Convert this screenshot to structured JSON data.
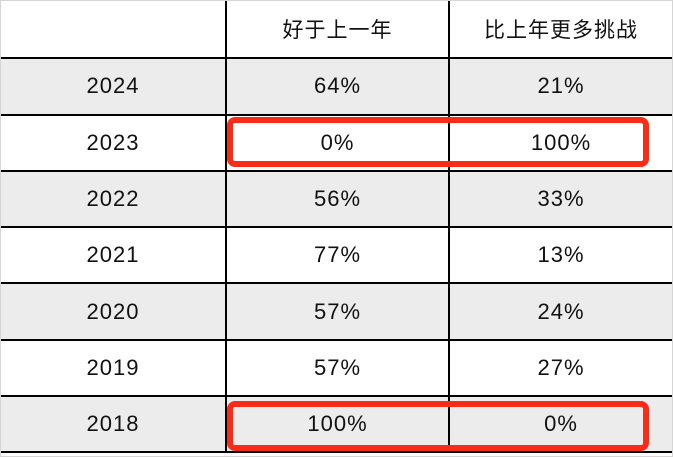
{
  "table": {
    "columns": [
      "",
      "好于上一年",
      "比上年更多挑战"
    ],
    "rows": [
      {
        "year": "2024",
        "better": "64%",
        "challenge": "21%",
        "highlight": false
      },
      {
        "year": "2023",
        "better": "0%",
        "challenge": "100%",
        "highlight": true
      },
      {
        "year": "2022",
        "better": "56%",
        "challenge": "33%",
        "highlight": false
      },
      {
        "year": "2021",
        "better": "77%",
        "challenge": "13%",
        "highlight": false
      },
      {
        "year": "2020",
        "better": "57%",
        "challenge": "24%",
        "highlight": false
      },
      {
        "year": "2019",
        "better": "57%",
        "challenge": "27%",
        "highlight": false
      },
      {
        "year": "2018",
        "better": "100%",
        "challenge": "0%",
        "highlight": true
      }
    ]
  },
  "colors": {
    "highlight_red": "#fa2c18",
    "row_alt_gray": "#ececec",
    "grid_black": "#000000",
    "frame_gray": "#d5d5d5"
  },
  "chart_data": {
    "type": "table",
    "columns": [
      "",
      "好于上一年",
      "比上年更多挑战"
    ],
    "categories": [
      "2024",
      "2023",
      "2022",
      "2021",
      "2020",
      "2019",
      "2018"
    ],
    "series": [
      {
        "name": "好于上一年",
        "values": [
          64,
          0,
          56,
          77,
          57,
          57,
          100
        ]
      },
      {
        "name": "比上年更多挑战",
        "values": [
          21,
          100,
          33,
          13,
          24,
          27,
          0
        ]
      }
    ],
    "values_unit": "%",
    "highlighted_rows": [
      "2023",
      "2018"
    ],
    "legend_position": "none",
    "grid": true
  }
}
